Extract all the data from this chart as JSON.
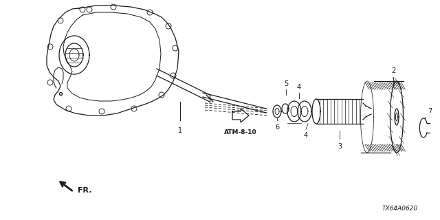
{
  "bg_color": "#ffffff",
  "line_color": "#1a1a1a",
  "diagram_code": "TX64A0620",
  "atm_label": "ATM-8-10",
  "fr_label": "FR.",
  "figsize": [
    6.4,
    3.2
  ],
  "dpi": 100
}
